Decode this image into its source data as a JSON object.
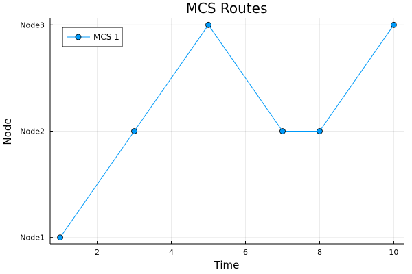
{
  "chart_data": {
    "type": "line",
    "title": "MCS Routes",
    "xlabel": "Time",
    "ylabel": "Node",
    "xlim": [
      0.73,
      10.27
    ],
    "ylim": [
      0.94,
      3.06
    ],
    "x_ticks": [
      2,
      4,
      6,
      8,
      10
    ],
    "y_categories": [
      "Node1",
      "Node2",
      "Node3"
    ],
    "grid": true,
    "legend_position": "top-left",
    "series": [
      {
        "name": "MCS 1",
        "color": "#009af9",
        "x": [
          1,
          3,
          5,
          7,
          8,
          10
        ],
        "y": [
          "Node1",
          "Node2",
          "Node3",
          "Node2",
          "Node2",
          "Node3"
        ]
      }
    ]
  }
}
